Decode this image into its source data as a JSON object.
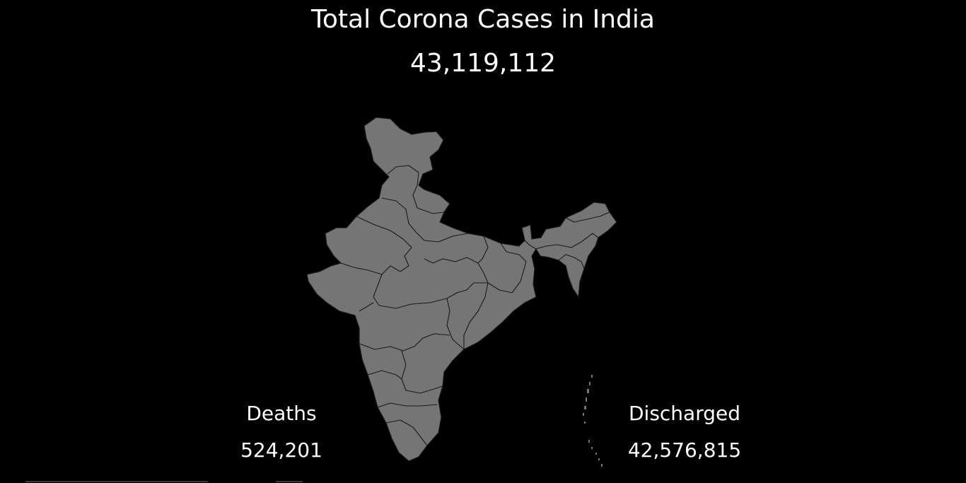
{
  "header": {
    "title": "Total Corona Cases in India",
    "total_cases": "43,119,112"
  },
  "stats": {
    "deaths_label": "Deaths",
    "deaths_value": "524,201",
    "discharged_label": "Discharged",
    "discharged_value": "42,576,815"
  },
  "map": {
    "region": "India",
    "fill_color": "#757575",
    "border_color": "#1a1a1a",
    "background_color": "#000000"
  }
}
